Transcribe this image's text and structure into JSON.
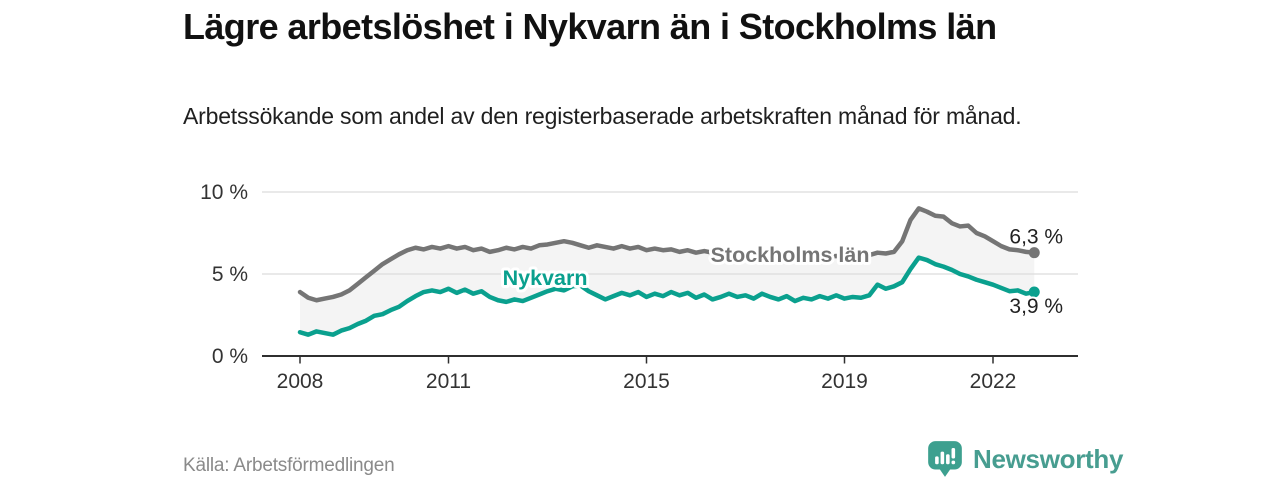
{
  "chart_data": {
    "type": "line",
    "title": "Lägre arbetslöshet i Nykvarn än i Stockholms län",
    "subtitle": "Arbetssökande som andel av den registerbaserade arbetskraften månad för månad.",
    "x_start": 2008.0,
    "x_step_years": 0.166667,
    "x_ticks": [
      2008,
      2011,
      2015,
      2019,
      2022
    ],
    "y_ticks": [
      {
        "value": 0,
        "label": "0 %"
      },
      {
        "value": 5,
        "label": "5 %"
      },
      {
        "value": 10,
        "label": "10 %"
      }
    ],
    "ylim": [
      0,
      10.5
    ],
    "grid": true,
    "legend_position": "inline-labels",
    "colors": {
      "axis_text": "#333333",
      "grid": "#dcdcdc",
      "axis_line": "#2f2f2f",
      "fill_between": "#f4f4f4",
      "end_label": "#222222"
    },
    "series": [
      {
        "name": "Stockholms län",
        "color": "#757575",
        "end_label": "6,3 %",
        "label": {
          "x": 2017.9,
          "y": 6.15
        },
        "values": [
          3.9,
          3.55,
          3.4,
          3.5,
          3.6,
          3.75,
          4.0,
          4.4,
          4.8,
          5.2,
          5.6,
          5.9,
          6.2,
          6.45,
          6.6,
          6.5,
          6.65,
          6.55,
          6.7,
          6.55,
          6.65,
          6.45,
          6.55,
          6.35,
          6.45,
          6.6,
          6.5,
          6.65,
          6.55,
          6.75,
          6.8,
          6.9,
          7.0,
          6.9,
          6.75,
          6.6,
          6.75,
          6.65,
          6.55,
          6.7,
          6.55,
          6.65,
          6.45,
          6.55,
          6.45,
          6.5,
          6.35,
          6.45,
          6.3,
          6.4,
          6.3,
          6.25,
          6.35,
          6.25,
          6.2,
          6.3,
          6.15,
          6.25,
          6.1,
          6.2,
          6.1,
          6.2,
          6.05,
          6.15,
          6.05,
          6.1,
          6.0,
          6.1,
          6.05,
          6.15,
          6.3,
          6.25,
          6.35,
          7.0,
          8.3,
          9.0,
          8.8,
          8.55,
          8.5,
          8.1,
          7.9,
          7.95,
          7.5,
          7.3,
          7.0,
          6.7,
          6.5,
          6.45,
          6.35,
          6.3
        ]
      },
      {
        "name": "Nykvarn",
        "color": "#0aa08e",
        "end_label": "3,9 %",
        "label": {
          "x": 2012.95,
          "y": 4.75
        },
        "values": [
          1.45,
          1.3,
          1.5,
          1.4,
          1.3,
          1.55,
          1.7,
          1.95,
          2.15,
          2.45,
          2.55,
          2.8,
          3.0,
          3.35,
          3.65,
          3.9,
          4.0,
          3.9,
          4.1,
          3.85,
          4.05,
          3.8,
          3.95,
          3.6,
          3.4,
          3.3,
          3.45,
          3.35,
          3.55,
          3.75,
          3.95,
          4.1,
          4.0,
          4.25,
          4.3,
          3.95,
          3.7,
          3.45,
          3.65,
          3.85,
          3.7,
          3.9,
          3.6,
          3.8,
          3.65,
          3.9,
          3.7,
          3.85,
          3.55,
          3.75,
          3.45,
          3.6,
          3.8,
          3.6,
          3.7,
          3.5,
          3.8,
          3.6,
          3.45,
          3.65,
          3.35,
          3.55,
          3.45,
          3.65,
          3.5,
          3.7,
          3.5,
          3.6,
          3.55,
          3.7,
          4.35,
          4.1,
          4.25,
          4.5,
          5.3,
          6.0,
          5.85,
          5.6,
          5.45,
          5.25,
          5.0,
          4.85,
          4.65,
          4.5,
          4.35,
          4.15,
          3.95,
          4.0,
          3.8,
          3.9
        ]
      }
    ]
  },
  "footer": {
    "source": "Källa: Arbetsförmedlingen",
    "logo_text": "Newsworthy",
    "logo_icon": "bar-chart-speech-bubble-icon",
    "brand_color": "#3da08f"
  }
}
